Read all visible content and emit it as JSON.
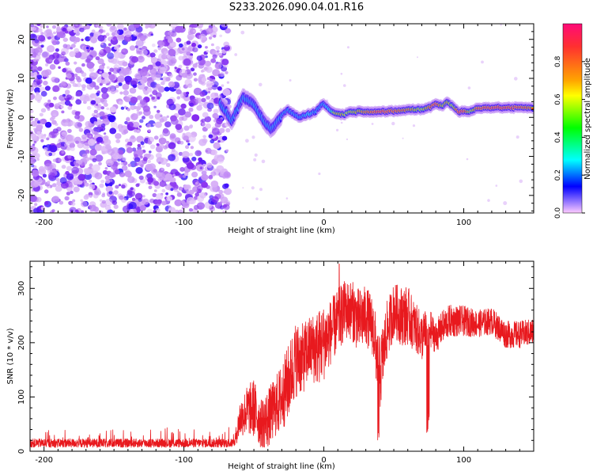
{
  "title": "S233.2026.090.04.01.R16",
  "chart_data": [
    {
      "type": "heatmap",
      "title": "S233.2026.090.04.01.R16",
      "xlabel": "Height of straight line (km)",
      "ylabel": "Frequency (Hz)",
      "xlim": [
        -210,
        150
      ],
      "ylim": [
        -24.5,
        24
      ],
      "xticks": [
        -200,
        -100,
        0,
        100
      ],
      "yticks": [
        -20,
        -10,
        0,
        10,
        20
      ],
      "grid": false,
      "colorbar": {
        "label": "Normalized spectral amplitude",
        "range": [
          0.0,
          1.0
        ],
        "ticks": [
          0.0,
          0.2,
          0.4,
          0.6,
          0.8
        ],
        "colormap": [
          "#ff00c8",
          "#ff0000",
          "#ffff00",
          "#00ff00",
          "#00ffff",
          "#0000ff",
          "#ff00ff"
        ]
      },
      "noise_region_km": [
        -210,
        -72
      ],
      "signal_trace": {
        "x": [
          -74,
          -70,
          -66,
          -62,
          -58,
          -54,
          -50,
          -46,
          -42,
          -38,
          -34,
          -30,
          -26,
          -22,
          -18,
          -14,
          -10,
          -6,
          -2,
          0,
          4,
          8,
          12,
          16,
          20,
          30,
          40,
          50,
          60,
          70,
          75,
          80,
          85,
          88,
          92,
          96,
          100,
          105,
          110,
          120,
          130,
          140,
          150
        ],
        "frequency": [
          3.5,
          1.5,
          -1.0,
          2.0,
          5.0,
          4.5,
          3.0,
          1.0,
          -1.5,
          -3.0,
          -1.5,
          0.5,
          2.0,
          1.0,
          0.0,
          0.5,
          1.0,
          1.5,
          3.0,
          3.5,
          2.0,
          1.0,
          0.8,
          1.0,
          1.5,
          1.5,
          1.5,
          1.5,
          2.0,
          2.0,
          2.5,
          3.5,
          3.0,
          4.0,
          3.0,
          1.5,
          1.5,
          1.5,
          2.5,
          2.5,
          2.5,
          2.5,
          2.5
        ],
        "amplitude": [
          0.35,
          0.2,
          0.15,
          0.3,
          0.35,
          0.25,
          0.25,
          0.2,
          0.2,
          0.3,
          0.45,
          0.5,
          0.4,
          0.5,
          0.45,
          0.55,
          0.6,
          0.5,
          0.4,
          0.55,
          0.6,
          0.75,
          0.8,
          0.7,
          0.75,
          0.85,
          0.95,
          0.9,
          0.85,
          0.7,
          0.85,
          0.95,
          0.75,
          0.8,
          0.7,
          0.95,
          0.95,
          0.7,
          0.9,
          0.95,
          0.95,
          0.9,
          0.85
        ]
      }
    },
    {
      "type": "line",
      "xlabel": "Height of straight line (km)",
      "ylabel": "SNR (10 * v/v)",
      "xlim": [
        -210,
        150
      ],
      "ylim": [
        0,
        350
      ],
      "xticks": [
        -200,
        -100,
        0,
        100
      ],
      "yticks": [
        0,
        100,
        200,
        300
      ],
      "grid": false,
      "series": [
        {
          "name": "SNR",
          "color": "#e8191e",
          "envelope_x": [
            -210,
            -160,
            -120,
            -80,
            -64,
            -60,
            -55,
            -50,
            -45,
            -40,
            -35,
            -30,
            -25,
            -20,
            -15,
            -10,
            -5,
            0,
            5,
            10,
            15,
            20,
            25,
            30,
            35,
            40,
            45,
            50,
            55,
            60,
            65,
            70,
            75,
            80,
            85,
            90,
            100,
            110,
            120,
            130,
            140,
            150
          ],
          "envelope_mean": [
            15,
            15,
            15,
            15,
            15,
            60,
            75,
            80,
            50,
            60,
            80,
            100,
            130,
            170,
            170,
            190,
            190,
            200,
            220,
            240,
            260,
            260,
            240,
            250,
            230,
            140,
            220,
            260,
            250,
            250,
            230,
            210,
            230,
            210,
            230,
            240,
            240,
            235,
            240,
            215,
            215,
            220
          ],
          "noise_amplitude": [
            8,
            8,
            8,
            8,
            8,
            35,
            45,
            55,
            45,
            55,
            55,
            65,
            70,
            70,
            65,
            60,
            70,
            70,
            60,
            60,
            55,
            55,
            60,
            55,
            55,
            70,
            55,
            50,
            55,
            55,
            45,
            45,
            35,
            30,
            30,
            30,
            28,
            25,
            25,
            25,
            25,
            25
          ],
          "dips": [
            {
              "x": 39,
              "y": 20
            },
            {
              "x": 74,
              "y": 30
            },
            {
              "x": 75,
              "y": 55
            }
          ],
          "peak": {
            "x": 11,
            "y": 345
          }
        }
      ]
    }
  ]
}
